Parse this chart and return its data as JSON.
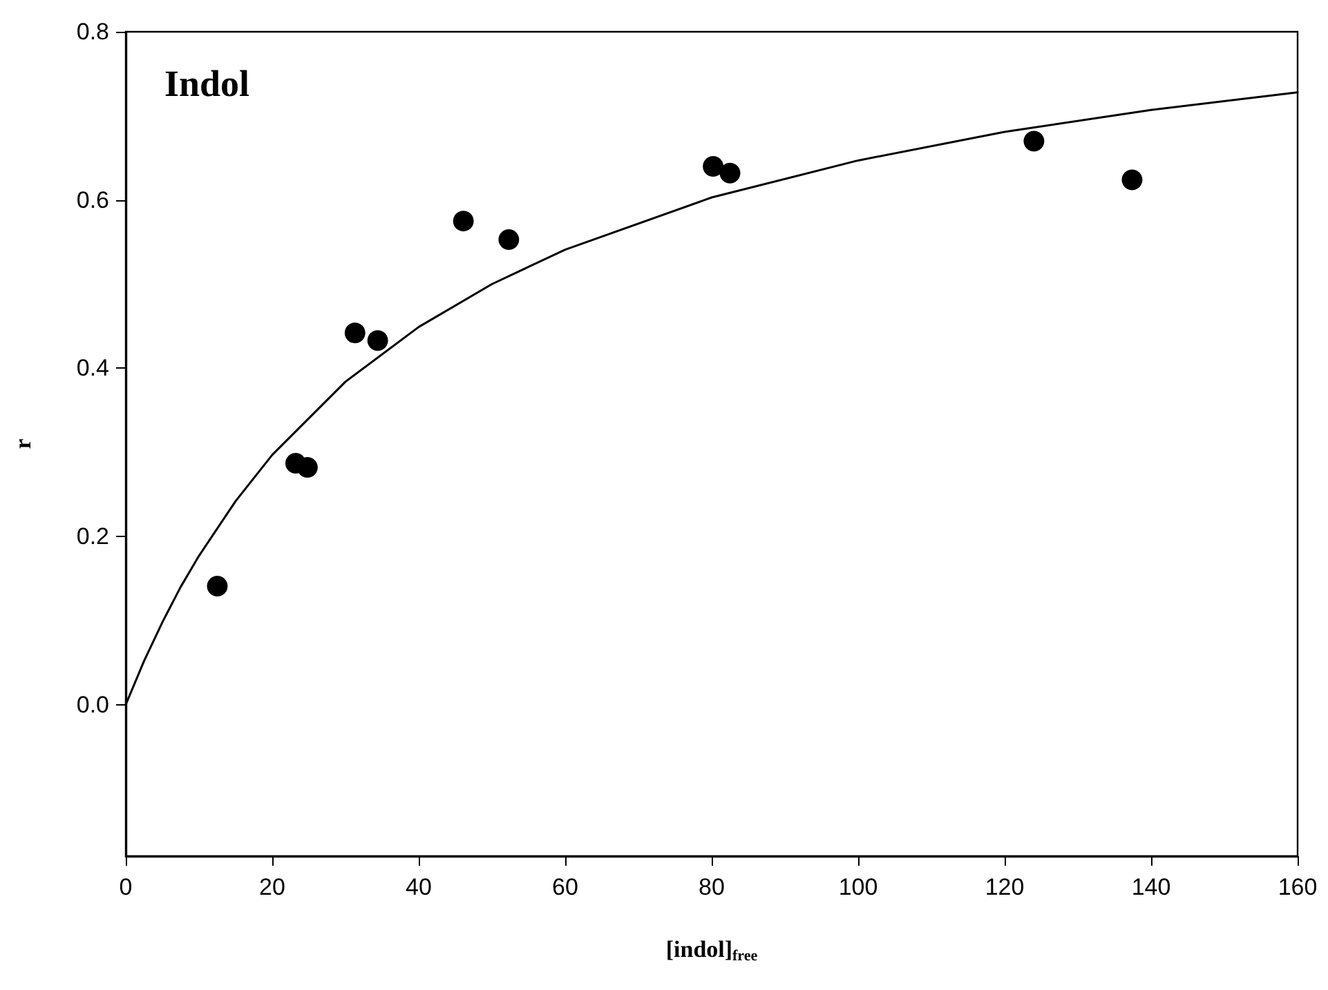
{
  "chart_data": {
    "type": "scatter",
    "title": "Indol",
    "xlabel": "[indol]$_{free}$",
    "ylabel": "r",
    "xlim": [
      0,
      160
    ],
    "xticks": [
      0,
      20,
      40,
      60,
      80,
      100,
      120,
      140,
      160
    ],
    "ylim": [
      -0.18,
      0.8
    ],
    "yticks": [
      {
        "value": 0,
        "label": "0.0"
      },
      {
        "value": 0.2,
        "label": "0.2"
      },
      {
        "value": 0.4,
        "label": "0.4"
      },
      {
        "value": 0.6,
        "label": "0.6"
      },
      {
        "value": 0.8,
        "label": "0.8"
      }
    ],
    "series": [
      {
        "marker": "circle",
        "color": "#000000",
        "x": [
          12.5,
          23.2,
          24.8,
          31.3,
          34.4,
          46.1,
          52.3,
          80.2,
          82.5,
          124.0,
          137.4
        ],
        "values": [
          0.141,
          0.287,
          0.282,
          0.442,
          0.433,
          0.575,
          0.553,
          0.64,
          0.632,
          0.67,
          0.624
        ]
      },
      {
        "type": "line",
        "marker": "none",
        "color": "#000000",
        "line_style": "solid",
        "x": [
          0,
          2.5,
          5,
          7.5,
          10,
          15,
          20,
          30,
          40,
          50,
          60,
          80,
          100,
          120,
          140,
          160
        ],
        "values": [
          0,
          0.052,
          0.098,
          0.14,
          0.177,
          0.242,
          0.297,
          0.384,
          0.449,
          0.5,
          0.541,
          0.603,
          0.647,
          0.681,
          0.707,
          0.728
        ]
      }
    ]
  }
}
